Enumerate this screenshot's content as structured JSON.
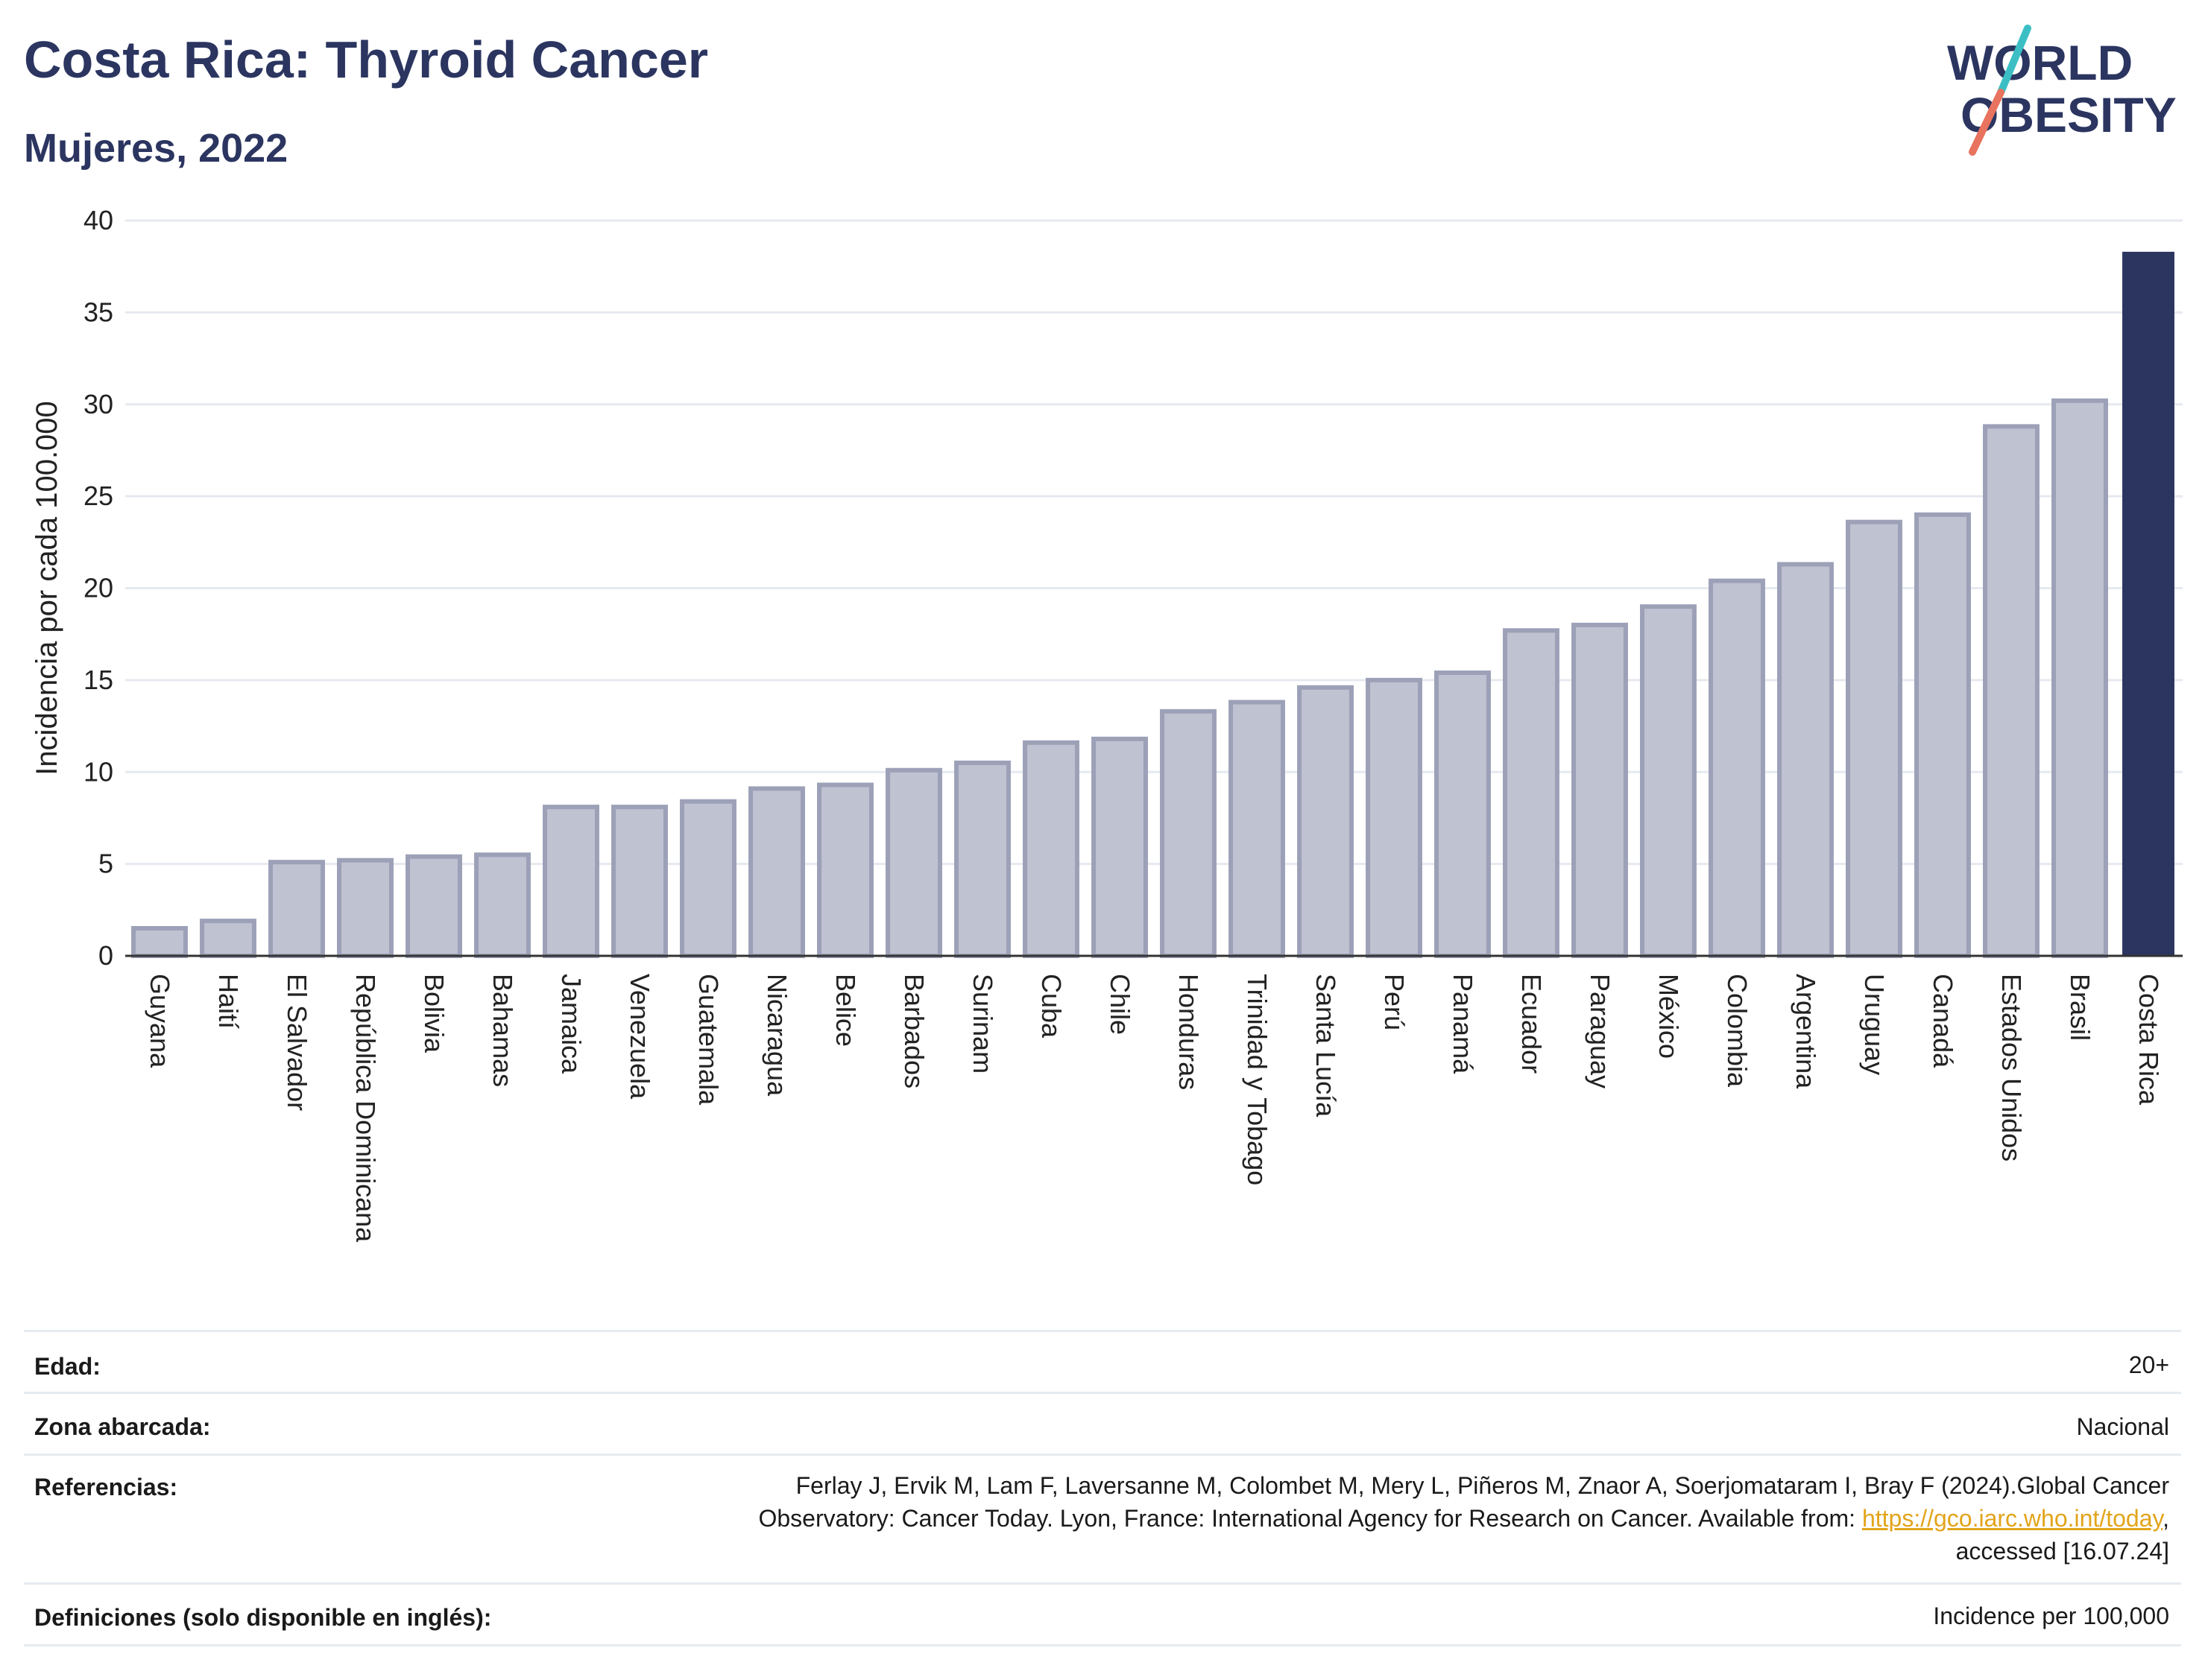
{
  "header": {
    "title": "Costa Rica: Thyroid Cancer",
    "subtitle": "Mujeres, 2022"
  },
  "logo": {
    "line1": "WORLD",
    "line2": "OBESITY",
    "colors": {
      "text": "#2b3560",
      "slash_top": "#3bbfc4",
      "slash_bottom": "#e8735f"
    }
  },
  "chart_data": {
    "type": "bar",
    "title": "",
    "xlabel": "",
    "ylabel": "Incidencia por cada 100.000",
    "ylim": [
      0,
      40
    ],
    "yticks": [
      0,
      5,
      10,
      15,
      20,
      25,
      30,
      35,
      40
    ],
    "grid": true,
    "legend": "none",
    "categories": [
      "Guyana",
      "Haití",
      "El Salvador",
      "República Dominicana",
      "Bolivia",
      "Bahamas",
      "Jamaica",
      "Venezuela",
      "Guatemala",
      "Nicaragua",
      "Belice",
      "Barbados",
      "Surinam",
      "Cuba",
      "Chile",
      "Honduras",
      "Trinidad y Tobago",
      "Santa Lucía",
      "Perú",
      "Panamá",
      "Ecuador",
      "Paraguay",
      "México",
      "Colombia",
      "Argentina",
      "Uruguay",
      "Canadá",
      "Estados Unidos",
      "Brasil",
      "Costa Rica"
    ],
    "values": [
      1.5,
      1.9,
      5.1,
      5.2,
      5.4,
      5.5,
      8.1,
      8.1,
      8.4,
      9.1,
      9.3,
      10.1,
      10.5,
      11.6,
      11.8,
      13.3,
      13.8,
      14.6,
      15.0,
      15.4,
      17.7,
      18.0,
      19.0,
      20.4,
      21.3,
      23.6,
      24.0,
      28.8,
      30.2,
      38.3
    ],
    "highlight": "Costa Rica",
    "colors": {
      "bar": "#bfc2d1",
      "bar_border": "#9ca1b8",
      "highlight": "#2b3560",
      "grid": "#e6e9ef",
      "axis": "#333333"
    }
  },
  "meta": {
    "rows": [
      {
        "label": "Edad:",
        "value": "20+"
      },
      {
        "label": "Zona abarcada:",
        "value": "Nacional"
      },
      {
        "label": "Referencias:",
        "value_lines": [
          "Ferlay J, Ervik M, Lam F, Laversanne M, Colombet M, Mery L, Piñeros M, Znaor A, Soerjomataram I, Bray F (2024).Global Cancer",
          "Observatory: Cancer Today. Lyon, France: International Agency for Research on Cancer. Available from: "
        ],
        "link": "https://gco.iarc.who.int/today",
        "after_link": ",",
        "last_line": "accessed [16.07.24]"
      },
      {
        "label": "Definiciones (solo disponible en inglés):",
        "value": "Incidence per 100,000"
      }
    ]
  }
}
